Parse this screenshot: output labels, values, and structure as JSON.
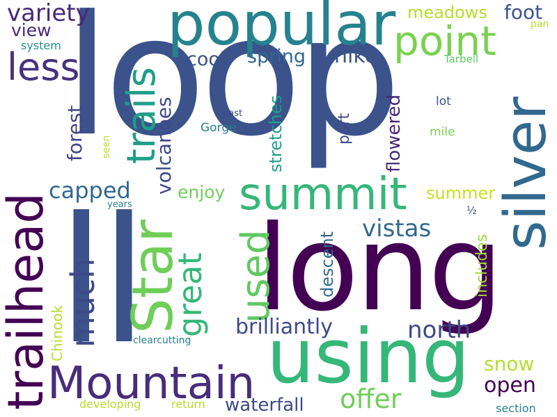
{
  "words": [
    {
      "text": "loop",
      "color": "#3b528b"
    },
    {
      "text": "ll",
      "color": "#3b528b"
    },
    {
      "text": "long",
      "color": "#440154"
    },
    {
      "text": "using",
      "color": "#35b779"
    },
    {
      "text": "silver",
      "color": "#31688e"
    },
    {
      "text": "popular",
      "color": "#26828e"
    },
    {
      "text": "trailhead",
      "color": "#440154"
    },
    {
      "text": "Mountain",
      "color": "#472d7b"
    },
    {
      "text": "Star",
      "color": "#6ece58"
    },
    {
      "text": "summit",
      "color": "#35b779"
    },
    {
      "text": "trails",
      "color": "#1f9e89"
    },
    {
      "text": "point",
      "color": "#7ad151"
    },
    {
      "text": "less",
      "color": "#46327e"
    },
    {
      "text": "used",
      "color": "#5ec962"
    },
    {
      "text": "great",
      "color": "#35b779"
    },
    {
      "text": "much",
      "color": "#3e4989"
    },
    {
      "text": "variety",
      "color": "#482878"
    },
    {
      "text": "offer",
      "color": "#6ece58"
    },
    {
      "text": "vistas",
      "color": "#31688e"
    },
    {
      "text": "capped",
      "color": "#31688e"
    },
    {
      "text": "brilliantly",
      "color": "#3e4989"
    },
    {
      "text": "north",
      "color": "#3e4989"
    },
    {
      "text": "open",
      "color": "#440154"
    },
    {
      "text": "waterfall",
      "color": "#3e4989"
    },
    {
      "text": "volcanoes",
      "color": "#3e4989"
    },
    {
      "text": "forest",
      "color": "#414487"
    },
    {
      "text": "view",
      "color": "#482878"
    },
    {
      "text": "hike",
      "color": "#3b528b"
    },
    {
      "text": "spring",
      "color": "#31688e"
    },
    {
      "text": "cool",
      "color": "#3b528b"
    },
    {
      "text": "meadows",
      "color": "#b5de2b"
    },
    {
      "text": "foot",
      "color": "#3b528b"
    },
    {
      "text": "enjoy",
      "color": "#6ece58"
    },
    {
      "text": "stretches",
      "color": "#1f9e89"
    },
    {
      "text": "flowered",
      "color": "#482878"
    },
    {
      "text": "snow",
      "color": "#b5de2b"
    },
    {
      "text": "summer",
      "color": "#c8e020"
    },
    {
      "text": "descent",
      "color": "#31688e"
    },
    {
      "text": "includes",
      "color": "#a0da39"
    },
    {
      "text": "part",
      "color": "#3e4989"
    },
    {
      "text": "Chinook",
      "color": "#b5de2b"
    },
    {
      "text": "Gorge",
      "color": "#277f8e"
    },
    {
      "text": "system",
      "color": "#21918c"
    },
    {
      "text": "Tarbell",
      "color": "#5ec962"
    },
    {
      "text": "lot",
      "color": "#3b528b"
    },
    {
      "text": "mile",
      "color": "#7ad151"
    },
    {
      "text": "seen",
      "color": "#bddf26"
    },
    {
      "text": "past",
      "color": "#3e4989"
    },
    {
      "text": "pan",
      "color": "#b5de2b"
    },
    {
      "text": "years",
      "color": "#26828e"
    },
    {
      "text": "½",
      "color": "#3e4989"
    },
    {
      "text": "clearcutting",
      "color": "#26828e"
    },
    {
      "text": "developing",
      "color": "#b5de2b"
    },
    {
      "text": "return",
      "color": "#b5de2b"
    },
    {
      "text": "section",
      "color": "#26828e"
    }
  ]
}
